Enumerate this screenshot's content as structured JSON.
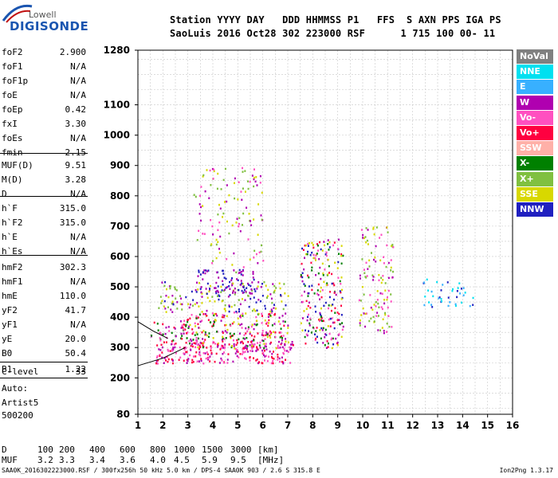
{
  "logo": {
    "brand": "Lowell",
    "product": "DIGISONDE"
  },
  "header": {
    "row1": "Station YYYY DAY   DDD HHMMSS P1   FFS  S AXN PPS IGA PS",
    "row2": "SaoLuis 2016 Oct28 302 223000 RSF      1 715 100 00- 11"
  },
  "params": [
    {
      "name": "foF2",
      "value": "2.900"
    },
    {
      "name": "foF1",
      "value": "N/A"
    },
    {
      "name": "foF1p",
      "value": "N/A"
    },
    {
      "name": "foE",
      "value": "N/A"
    },
    {
      "name": "foEp",
      "value": "0.42"
    },
    {
      "name": "fxI",
      "value": "3.30"
    },
    {
      "name": "foEs",
      "value": "N/A"
    },
    {
      "name": "fmin",
      "value": "2.15"
    },
    {
      "name": "MUF(D)",
      "value": "9.51"
    },
    {
      "name": "M(D)",
      "value": "3.28"
    },
    {
      "name": "D",
      "value": "N/A"
    },
    {
      "name": "h`F",
      "value": "315.0"
    },
    {
      "name": "h`F2",
      "value": "315.0"
    },
    {
      "name": "h`E",
      "value": "N/A"
    },
    {
      "name": "h`Es",
      "value": "N/A"
    },
    {
      "name": "hmF2",
      "value": "302.3"
    },
    {
      "name": "hmF1",
      "value": "N/A"
    },
    {
      "name": "hmE",
      "value": "110.0"
    },
    {
      "name": "yF2",
      "value": "41.7"
    },
    {
      "name": "yF1",
      "value": "N/A"
    },
    {
      "name": "yE",
      "value": "20.0"
    },
    {
      "name": "B0",
      "value": "50.4"
    },
    {
      "name": "B1",
      "value": "1.22"
    },
    {
      "name": "C-level",
      "value": "33"
    }
  ],
  "auto": {
    "line1": "Auto:",
    "line2": "Artist5",
    "line3": "500200"
  },
  "legend": [
    {
      "label": "NoVal",
      "color": "#808080",
      "text": "#ffffff"
    },
    {
      "label": "NNE",
      "color": "#00e0f0",
      "text": "#ffffff"
    },
    {
      "label": "E",
      "color": "#38b0ff",
      "text": "#ffffff"
    },
    {
      "label": "W",
      "color": "#b000b0",
      "text": "#ffffff"
    },
    {
      "label": "Vo-",
      "color": "#ff50c0",
      "text": "#ffffff"
    },
    {
      "label": "Vo+",
      "color": "#ff0040",
      "text": "#ffffff"
    },
    {
      "label": "SSW",
      "color": "#ffb0a8",
      "text": "#ffffff"
    },
    {
      "label": "X-",
      "color": "#008000",
      "text": "#ffffff"
    },
    {
      "label": "X+",
      "color": "#80c040",
      "text": "#ffffff"
    },
    {
      "label": "SSE",
      "color": "#d8d800",
      "text": "#ffffff"
    },
    {
      "label": "NNW",
      "color": "#2020c0",
      "text": "#ffffff"
    }
  ],
  "muf_table": {
    "d_label": "D",
    "muf_label": "MUF",
    "d_values": [
      "100",
      "200",
      "400",
      "600",
      "800",
      "1000",
      "1500",
      "3000",
      "[km]"
    ],
    "muf_values": [
      "3.2",
      "3.3",
      "3.4",
      "3.6",
      "4.0",
      "4.5",
      "5.9",
      "9.5",
      "[MHz]"
    ]
  },
  "footer": {
    "left": "SAA0K_2016302223000.RSF / 300fx256h 50 kHz 5.0 km / DPS-4 SAA0K 903 / 2.6 S 315.8 E",
    "right": "Ion2Png 1.3.17"
  },
  "chart_data": {
    "type": "scatter",
    "title": "",
    "xlabel": "",
    "ylabel": "",
    "x_ticks": [
      1,
      2,
      3,
      4,
      5,
      6,
      7,
      8,
      9,
      10,
      11,
      12,
      13,
      14,
      15,
      16
    ],
    "y_ticks": [
      80,
      200,
      300,
      400,
      500,
      600,
      700,
      800,
      900,
      1000,
      1100,
      1280
    ],
    "xlim": [
      1,
      16
    ],
    "ylim": [
      80,
      1280
    ],
    "grid": true,
    "legend_position": "right",
    "traces": [
      {
        "name": "trace-1",
        "values_freq_mhz": [
          1.0,
          2.0,
          2.9
        ],
        "values_height_km": [
          240,
          265,
          300
        ]
      },
      {
        "name": "trace-2",
        "values_freq_mhz": [
          1.0,
          1.6,
          2.2
        ],
        "values_height_km": [
          385,
          355,
          330
        ]
      }
    ],
    "clusters": [
      {
        "fx": [
          1.5,
          3.0
        ],
        "hy": [
          320,
          390
        ],
        "colors": [
          "#ff0040",
          "#b000b0",
          "#008000",
          "#ff50c0"
        ],
        "n": 40
      },
      {
        "fx": [
          1.7,
          7.2
        ],
        "hy": [
          250,
          330
        ],
        "colors": [
          "#ff0040",
          "#ff50c0",
          "#b000b0"
        ],
        "n": 260
      },
      {
        "fx": [
          2.8,
          7.0
        ],
        "hy": [
          300,
          420
        ],
        "colors": [
          "#ff0040",
          "#ff50c0",
          "#b000b0",
          "#d8d800",
          "#008000"
        ],
        "n": 240
      },
      {
        "fx": [
          1.8,
          7.0
        ],
        "hy": [
          420,
          520
        ],
        "colors": [
          "#d8d800",
          "#80c040",
          "#2020c0",
          "#b000b0"
        ],
        "n": 170
      },
      {
        "fx": [
          3.3,
          5.7
        ],
        "hy": [
          480,
          560
        ],
        "colors": [
          "#2020c0",
          "#b000b0"
        ],
        "n": 70
      },
      {
        "fx": [
          3.2,
          6.0
        ],
        "hy": [
          550,
          900
        ],
        "colors": [
          "#d8d800",
          "#b000b0",
          "#ff50c0",
          "#80c040"
        ],
        "n": 120
      },
      {
        "fx": [
          7.5,
          9.2
        ],
        "hy": [
          300,
          660
        ],
        "colors": [
          "#ff0040",
          "#b000b0",
          "#ff50c0",
          "#d8d800",
          "#008000",
          "#2020c0"
        ],
        "n": 230
      },
      {
        "fx": [
          9.8,
          11.2
        ],
        "hy": [
          350,
          700
        ],
        "colors": [
          "#d8d800",
          "#b000b0",
          "#ff50c0",
          "#80c040"
        ],
        "n": 120
      },
      {
        "fx": [
          12.3,
          14.5
        ],
        "hy": [
          430,
          530
        ],
        "colors": [
          "#00e0f0",
          "#38b0ff",
          "#2020c0"
        ],
        "n": 40
      }
    ]
  }
}
